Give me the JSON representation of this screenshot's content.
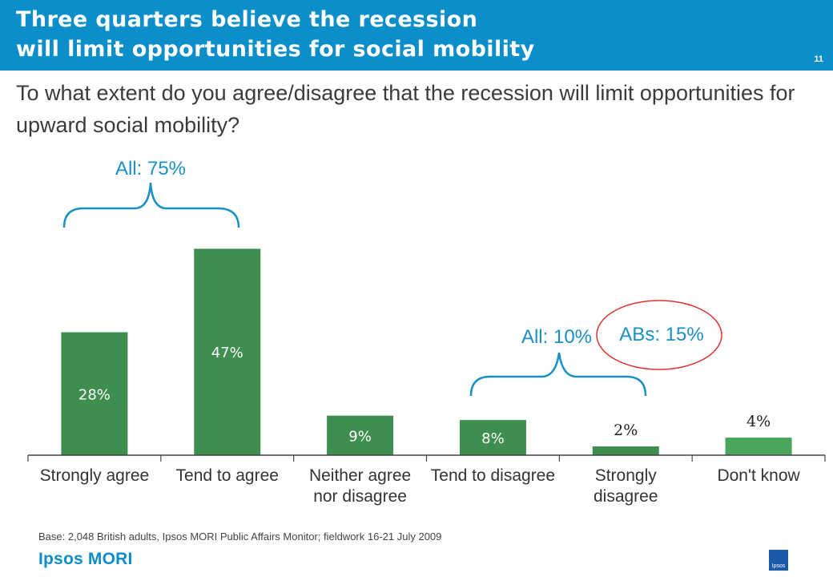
{
  "header": {
    "title_line1": "Three quarters believe the recession",
    "title_line2": "will limit opportunities for social mobility",
    "page_number": "11"
  },
  "question": "To what extent do you agree/disagree that the recession will limit opportunities for upward social mobility?",
  "annotations": {
    "agree_total": "All: 75%",
    "disagree_total": "All: 10%",
    "abs_callout": "ABs: 15%"
  },
  "footer": {
    "base": "Base: 2,048 British adults, Ipsos MORI Public Affairs Monitor; fieldwork 16-21 July 2009",
    "logo": "Ipsos MORI",
    "badge": "Ipsos"
  },
  "colors": {
    "header": "#0b8ec9",
    "bar": "#3e8e4f",
    "bar_light": "#48a75a",
    "annotation": "#1a8fc4",
    "callout_circle": "#e03030"
  },
  "chart_data": {
    "type": "bar",
    "categories": [
      "Strongly agree",
      "Tend to agree",
      "Neither agree nor disagree",
      "Tend to disagree",
      "Strongly disagree",
      "Don't know"
    ],
    "category_lines": [
      [
        "Strongly agree"
      ],
      [
        "Tend to agree"
      ],
      [
        "Neither agree",
        "nor disagree"
      ],
      [
        "Tend to disagree"
      ],
      [
        "Strongly",
        "disagree"
      ],
      [
        "Don't know"
      ]
    ],
    "values": [
      28,
      47,
      9,
      8,
      2,
      4
    ],
    "data_labels": [
      "28%",
      "47%",
      "9%",
      "8%",
      "2%",
      "4%"
    ],
    "label_inside": [
      true,
      true,
      true,
      true,
      false,
      false
    ],
    "ylim": [
      0,
      50
    ],
    "title": "",
    "xlabel": "",
    "ylabel": ""
  }
}
